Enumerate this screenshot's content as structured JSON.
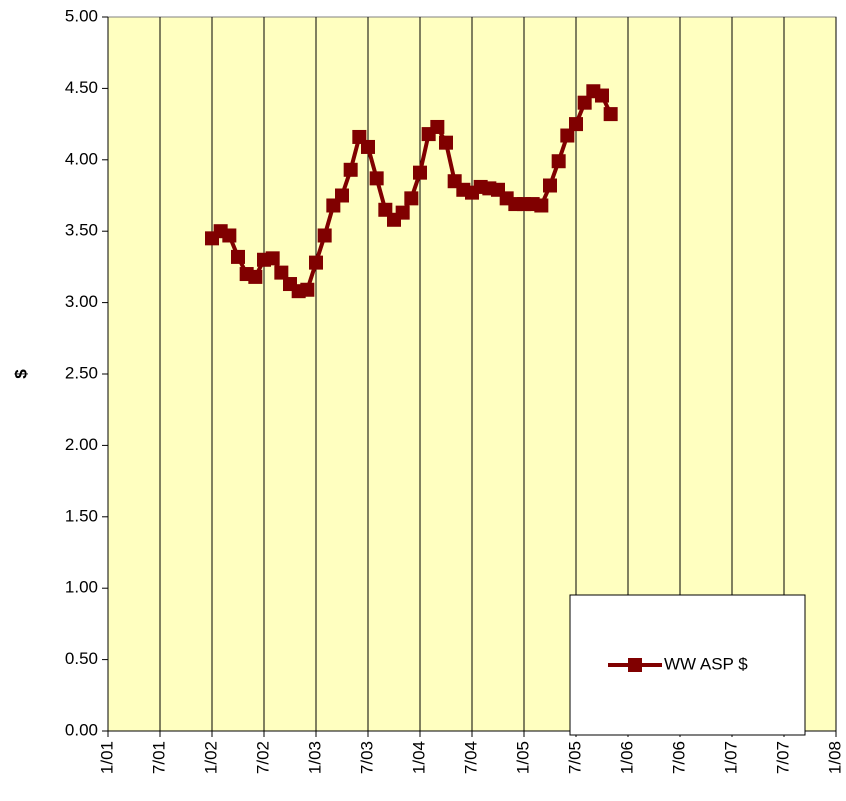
{
  "chart_data": {
    "type": "line",
    "ylabel": "$",
    "x": [
      "1/02",
      "2/02",
      "3/02",
      "4/02",
      "5/02",
      "6/02",
      "7/02",
      "8/02",
      "9/02",
      "10/02",
      "11/02",
      "12/02",
      "1/03",
      "2/03",
      "3/03",
      "4/03",
      "5/03",
      "6/03",
      "7/03",
      "8/03",
      "9/03",
      "10/03",
      "11/03",
      "12/03",
      "1/04",
      "2/04",
      "3/04",
      "4/04",
      "5/04",
      "6/04",
      "7/04",
      "8/04",
      "9/04",
      "10/04",
      "11/04",
      "12/04",
      "1/05",
      "2/05",
      "3/05",
      "4/05",
      "5/05",
      "6/05",
      "7/05",
      "8/05",
      "9/05",
      "10/05",
      "11/05"
    ],
    "series": [
      {
        "name": "WW ASP $",
        "color": "#800000",
        "values": [
          3.45,
          3.5,
          3.47,
          3.32,
          3.2,
          3.18,
          3.3,
          3.31,
          3.21,
          3.13,
          3.08,
          3.09,
          3.28,
          3.47,
          3.68,
          3.75,
          3.93,
          4.16,
          4.09,
          3.87,
          3.65,
          3.58,
          3.63,
          3.73,
          3.91,
          4.18,
          4.23,
          4.12,
          3.85,
          3.79,
          3.77,
          3.81,
          3.8,
          3.79,
          3.73,
          3.69,
          3.69,
          3.69,
          3.68,
          3.82,
          3.99,
          4.17,
          4.25,
          4.4,
          4.48,
          4.45,
          4.32
        ]
      }
    ],
    "xlim": [
      "1/01",
      "1/08"
    ],
    "xticks": [
      "1/01",
      "7/01",
      "1/02",
      "7/02",
      "1/03",
      "7/03",
      "1/04",
      "7/04",
      "1/05",
      "7/05",
      "1/06",
      "7/06",
      "1/07",
      "7/07",
      "1/08"
    ],
    "ylim": [
      0,
      5
    ],
    "yticks": [
      {
        "value": 0,
        "label": "0.00"
      },
      {
        "value": 0.5,
        "label": "0.50"
      },
      {
        "value": 1,
        "label": "1.00"
      },
      {
        "value": 1.5,
        "label": "1.50"
      },
      {
        "value": 2,
        "label": "2.00"
      },
      {
        "value": 2.5,
        "label": "2.50"
      },
      {
        "value": 3,
        "label": "3.00"
      },
      {
        "value": 3.5,
        "label": "3.50"
      },
      {
        "value": 4,
        "label": "4.00"
      },
      {
        "value": 4.5,
        "label": "4.50"
      },
      {
        "value": 5,
        "label": "5.00"
      }
    ],
    "grid": "x",
    "background": "#ffffc0",
    "legend": "lower right"
  }
}
